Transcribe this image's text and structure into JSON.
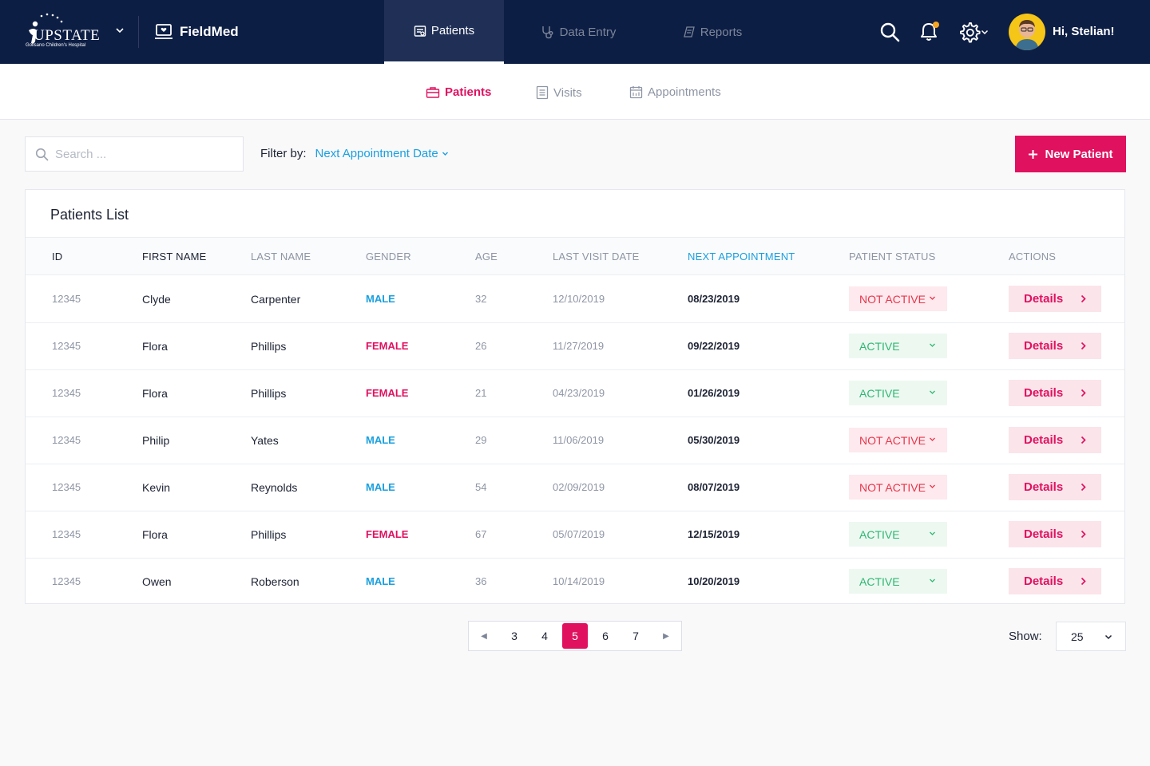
{
  "brand": {
    "logo_word": "UPSTATE",
    "logo_sub": "Golisano Children's Hospital",
    "app_name": "FieldMed"
  },
  "main_nav": [
    {
      "label": "Patients",
      "icon": "patient-card-icon",
      "active": true
    },
    {
      "label": "Data Entry",
      "icon": "stethoscope-icon",
      "active": false
    },
    {
      "label": "Reports",
      "icon": "reports-icon",
      "active": false
    }
  ],
  "user": {
    "greeting": "Hi, Stelian!"
  },
  "sub_nav": [
    {
      "label": "Patients",
      "icon": "briefcase-icon",
      "active": true
    },
    {
      "label": "Visits",
      "icon": "list-icon",
      "active": false
    },
    {
      "label": "Appointments",
      "icon": "calendar-icon",
      "active": false
    }
  ],
  "search": {
    "placeholder": "Search ...",
    "value": ""
  },
  "filter": {
    "label": "Filter by:",
    "value": "Next Appointment Date"
  },
  "new_patient_label": "New Patient",
  "table": {
    "title": "Patients List",
    "columns": [
      "ID",
      "FIRST NAME",
      "LAST NAME",
      "GENDER",
      "AGE",
      "LAST VISIT DATE",
      "NEXT APPOINTMENT",
      "PATIENT STATUS",
      "ACTIONS"
    ],
    "rows": [
      {
        "id": "12345",
        "first": "Clyde",
        "last": "Carpenter",
        "gender": "MALE",
        "age": "32",
        "last_visit": "12/10/2019",
        "next": "08/23/2019",
        "status": "NOT ACTIVE",
        "action": "Details"
      },
      {
        "id": "12345",
        "first": "Flora",
        "last": "Phillips",
        "gender": "FEMALE",
        "age": "26",
        "last_visit": "11/27/2019",
        "next": "09/22/2019",
        "status": "ACTIVE",
        "action": "Details"
      },
      {
        "id": "12345",
        "first": "Flora",
        "last": "Phillips",
        "gender": "FEMALE",
        "age": "21",
        "last_visit": "04/23/2019",
        "next": "01/26/2019",
        "status": "ACTIVE",
        "action": "Details"
      },
      {
        "id": "12345",
        "first": "Philip",
        "last": "Yates",
        "gender": "MALE",
        "age": "29",
        "last_visit": "11/06/2019",
        "next": "05/30/2019",
        "status": "NOT ACTIVE",
        "action": "Details"
      },
      {
        "id": "12345",
        "first": "Kevin",
        "last": "Reynolds",
        "gender": "MALE",
        "age": "54",
        "last_visit": "02/09/2019",
        "next": "08/07/2019",
        "status": "NOT ACTIVE",
        "action": "Details"
      },
      {
        "id": "12345",
        "first": "Flora",
        "last": "Phillips",
        "gender": "FEMALE",
        "age": "67",
        "last_visit": "05/07/2019",
        "next": "12/15/2019",
        "status": "ACTIVE",
        "action": "Details"
      },
      {
        "id": "12345",
        "first": "Owen",
        "last": "Roberson",
        "gender": "MALE",
        "age": "36",
        "last_visit": "10/14/2019",
        "next": "10/20/2019",
        "status": "ACTIVE",
        "action": "Details"
      }
    ]
  },
  "pagination": {
    "pages": [
      "3",
      "4",
      "5",
      "6",
      "7"
    ],
    "current": "5"
  },
  "show": {
    "label": "Show:",
    "value": "25"
  },
  "colors": {
    "navy": "#0d1e45",
    "accent": "#e0115f",
    "blue": "#1aa0e0",
    "active_green": "#2eb872",
    "inactive_red": "#e8364a"
  }
}
